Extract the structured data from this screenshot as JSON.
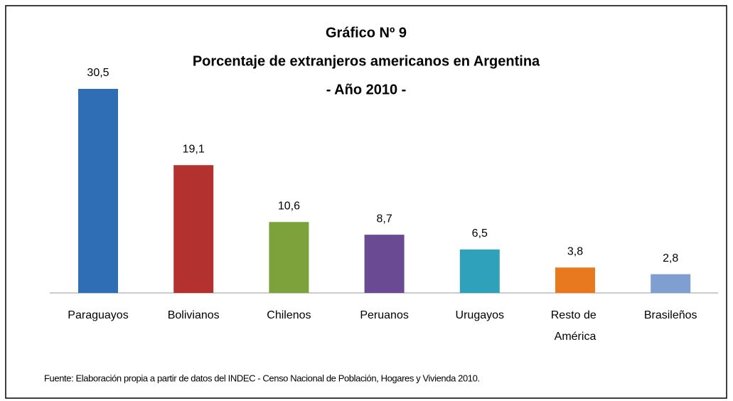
{
  "chart_data": {
    "type": "bar",
    "title": [
      "Gráfico Nº 9",
      "Porcentaje de extranjeros americanos en Argentina",
      "- Año 2010 -"
    ],
    "categories": [
      "Paraguayos",
      "Bolivianos",
      "Chilenos",
      "Peruanos",
      "Urugayos",
      "Resto de América",
      "Brasileños"
    ],
    "values": [
      30.5,
      19.1,
      10.6,
      8.7,
      6.5,
      3.8,
      2.8
    ],
    "value_labels": [
      "30,5",
      "19,1",
      "10,6",
      "8,7",
      "6,5",
      "3,8",
      "2,8"
    ],
    "colors": [
      "#2f6db5",
      "#b3312f",
      "#7ea23b",
      "#6a4a92",
      "#2fa1bb",
      "#e8791e",
      "#7f9fd0"
    ],
    "source": "Fuente: Elaboración propia a partir de datos del INDEC - Censo Nacional de Población, Hogares y Vivienda 2010."
  }
}
